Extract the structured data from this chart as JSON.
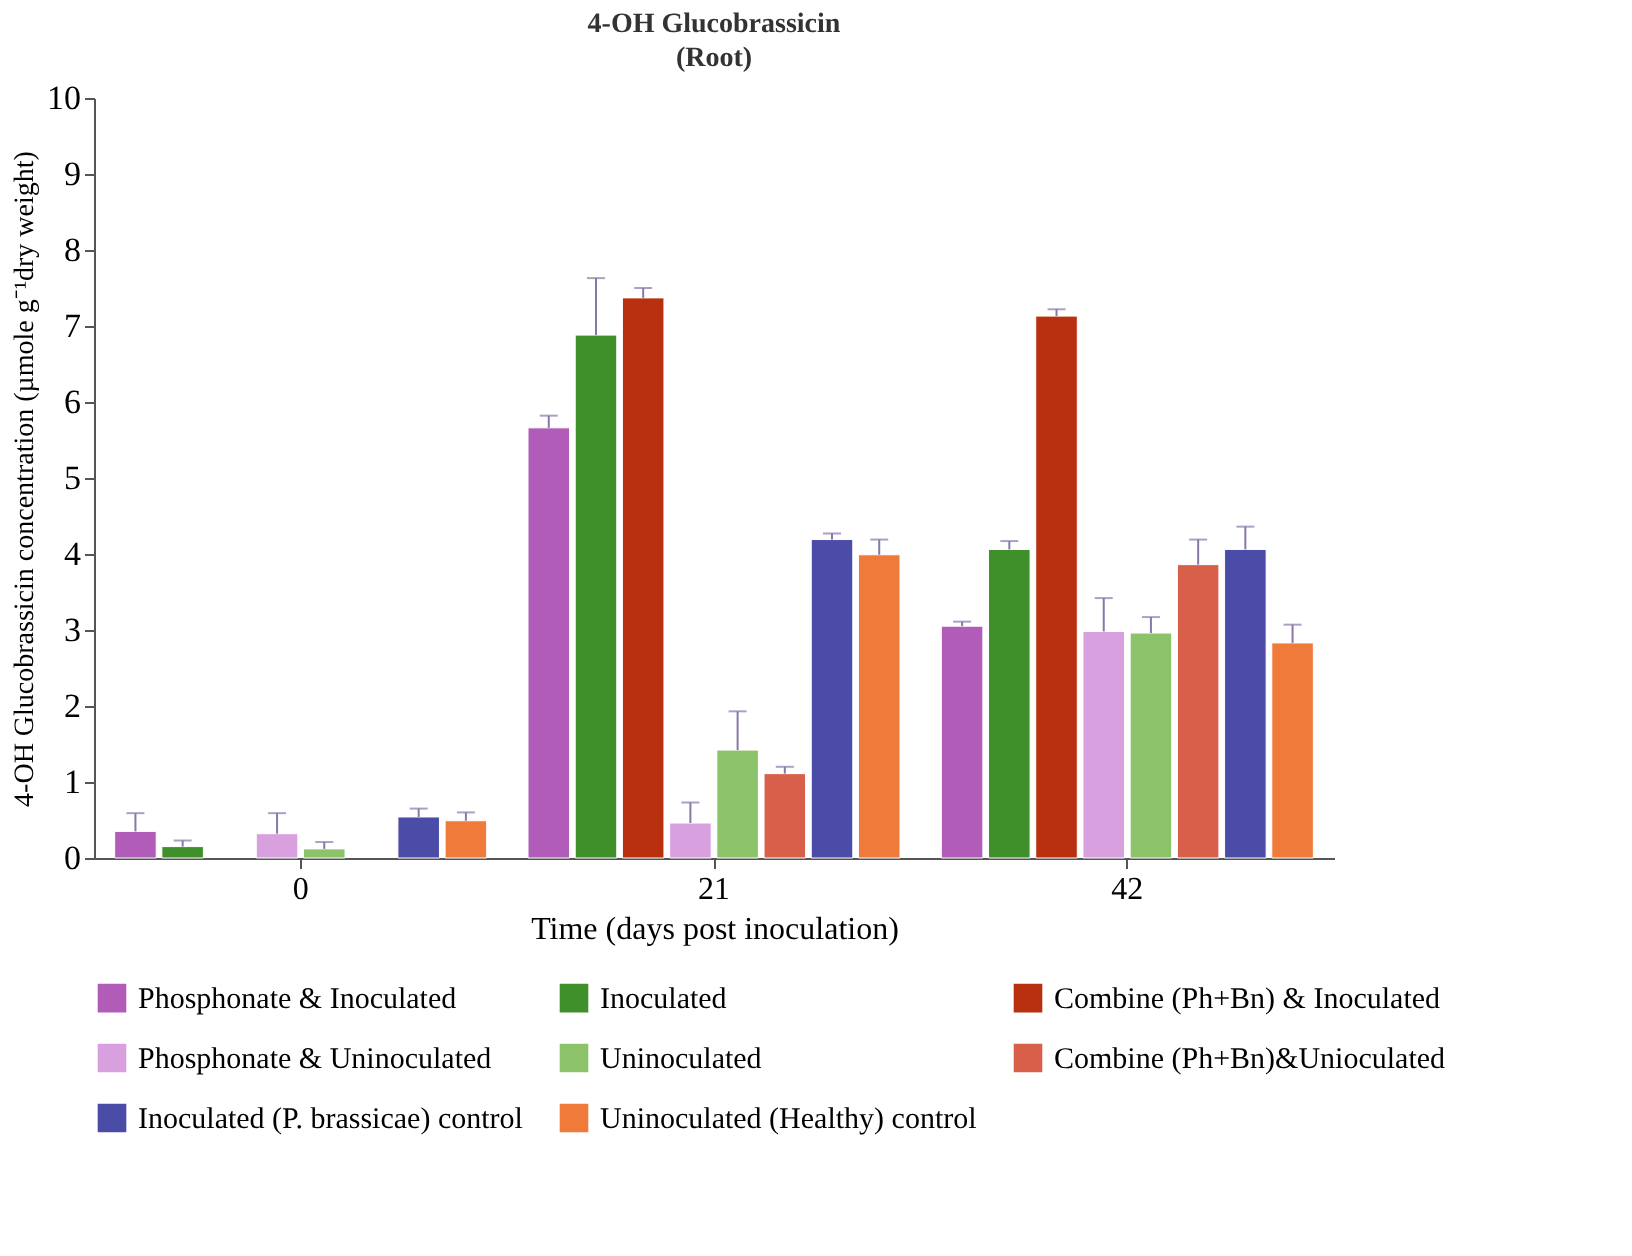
{
  "chart_data": {
    "type": "bar",
    "title": "4-OH Glucobrassicin",
    "subtitle": "(Root)",
    "xlabel": "Time (days post inoculation)",
    "ylabel": "4-OH Glucobrassicin concentration (µmole g⁻¹dry weight)",
    "categories": [
      "0",
      "21",
      "42"
    ],
    "ylim": [
      0,
      10
    ],
    "yticks": [
      0,
      1,
      2,
      3,
      4,
      5,
      6,
      7,
      8,
      9,
      10
    ],
    "grid": false,
    "legend": "bottom",
    "series": [
      {
        "name": "Phosphonate & Inoculated",
        "color": "#b05cb8",
        "values": [
          0.35,
          5.66,
          3.05
        ],
        "errors": [
          [
            0.35,
            0.59
          ],
          [
            5.66,
            5.82
          ],
          [
            3.05,
            3.11
          ]
        ]
      },
      {
        "name": "Inoculated",
        "color": "#3f8f2a",
        "values": [
          0.15,
          6.88,
          4.06
        ],
        "errors": [
          [
            0.15,
            0.23
          ],
          [
            6.88,
            7.63
          ],
          [
            4.06,
            4.17
          ]
        ]
      },
      {
        "name": "Combine (Ph+Bn) & Inoculated",
        "color": "#b8300f",
        "values": [
          null,
          7.37,
          7.13
        ],
        "errors": [
          null,
          [
            7.37,
            7.5
          ],
          [
            7.13,
            7.22
          ]
        ]
      },
      {
        "name": "Phosphonate & Uninoculated",
        "color": "#d9a0e0",
        "values": [
          0.32,
          0.46,
          2.98
        ],
        "errors": [
          [
            0.32,
            0.59
          ],
          [
            0.46,
            0.73
          ],
          [
            2.98,
            3.42
          ]
        ]
      },
      {
        "name": "Uninoculated",
        "color": "#8cc26a",
        "values": [
          0.12,
          1.42,
          2.96
        ],
        "errors": [
          [
            0.12,
            0.21
          ],
          [
            1.42,
            1.93
          ],
          [
            2.96,
            3.17
          ]
        ]
      },
      {
        "name": "Combine (Ph+Bn)&Unioculated",
        "color": "#d8604a",
        "values": [
          null,
          1.11,
          3.86
        ],
        "errors": [
          null,
          [
            1.11,
            1.2
          ],
          [
            3.86,
            4.19
          ]
        ]
      },
      {
        "name": "Inoculated (P. brassicae) control",
        "color": "#4b4ba8",
        "values": [
          0.54,
          4.19,
          4.06
        ],
        "errors": [
          [
            0.54,
            0.65
          ],
          [
            4.19,
            4.27
          ],
          [
            4.06,
            4.36
          ]
        ]
      },
      {
        "name": "Uninoculated (Healthy) control",
        "color": "#f07a3a",
        "values": [
          0.49,
          3.99,
          2.83
        ],
        "errors": [
          [
            0.49,
            0.6
          ],
          [
            3.99,
            4.19
          ],
          [
            2.83,
            3.07
          ]
        ]
      }
    ]
  }
}
